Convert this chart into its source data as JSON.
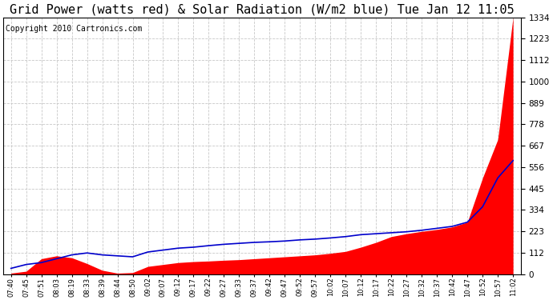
{
  "title": "Grid Power (watts red) & Solar Radiation (W/m2 blue) Tue Jan 12 11:05",
  "copyright": "Copyright 2010 Cartronics.com",
  "yticks": [
    0.5,
    111.6,
    222.7,
    333.8,
    444.9,
    556.0,
    667.1,
    778.2,
    889.3,
    1000.5,
    1111.6,
    1222.7,
    1333.8
  ],
  "ylim": [
    0.5,
    1333.8
  ],
  "bg_color": "#ffffff",
  "grid_color": "#c8c8c8",
  "red_color": "#ff0000",
  "blue_color": "#0000cc",
  "title_fontsize": 11,
  "copyright_fontsize": 7,
  "xtick_labels": [
    "07:40",
    "07:45",
    "07:51",
    "08:03",
    "08:19",
    "08:33",
    "08:39",
    "08:44",
    "08:50",
    "09:02",
    "09:07",
    "09:12",
    "09:17",
    "09:22",
    "09:27",
    "09:33",
    "09:37",
    "09:42",
    "09:47",
    "09:52",
    "09:57",
    "10:02",
    "10:07",
    "10:12",
    "10:17",
    "10:22",
    "10:27",
    "10:32",
    "10:37",
    "10:42",
    "10:47",
    "10:52",
    "10:57",
    "11:02"
  ],
  "solar_vals": [
    30,
    50,
    60,
    80,
    100,
    110,
    100,
    95,
    90,
    115,
    125,
    135,
    140,
    148,
    155,
    160,
    165,
    168,
    172,
    178,
    182,
    188,
    195,
    205,
    210,
    215,
    220,
    228,
    238,
    248,
    270,
    350,
    500,
    590
  ],
  "grid_vals": [
    5,
    15,
    80,
    95,
    85,
    55,
    20,
    5,
    8,
    40,
    50,
    60,
    65,
    68,
    72,
    75,
    80,
    85,
    90,
    95,
    100,
    108,
    118,
    140,
    165,
    195,
    210,
    222,
    232,
    245,
    270,
    500,
    700,
    1333.8
  ]
}
